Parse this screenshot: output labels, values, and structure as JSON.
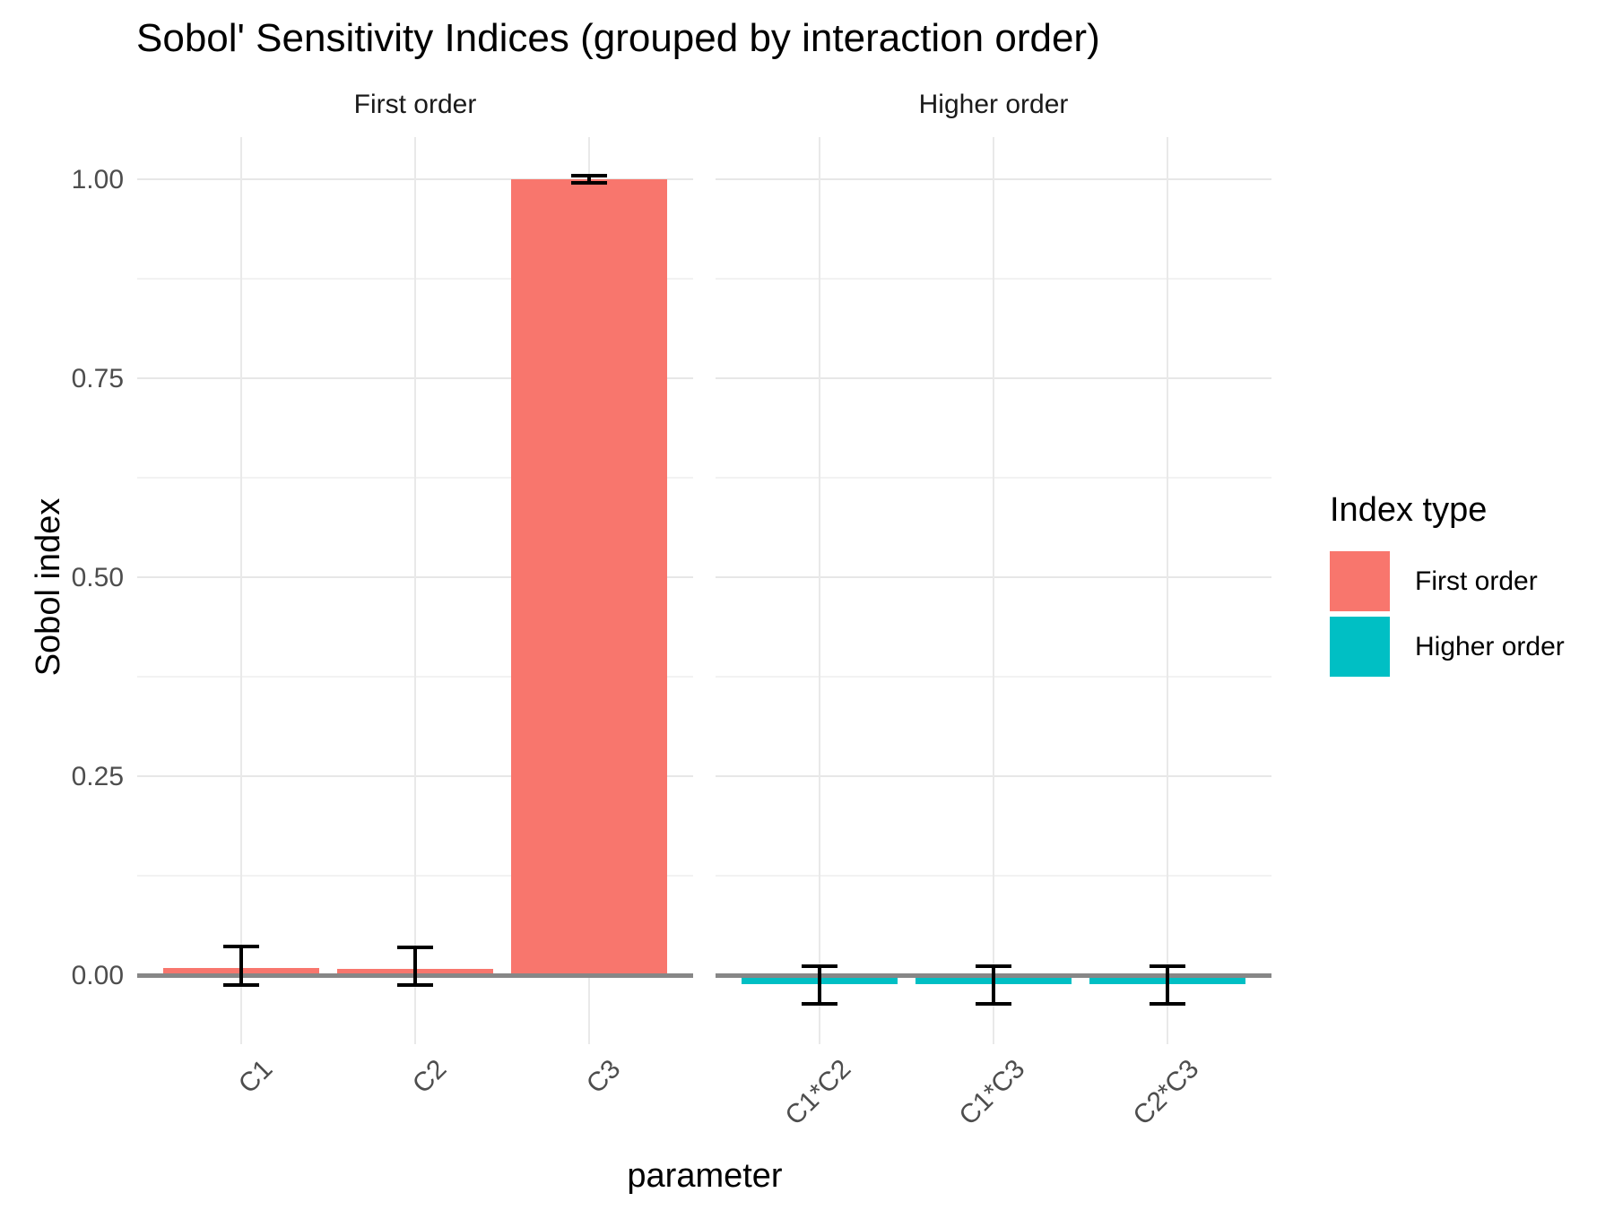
{
  "title": "Sobol' Sensitivity Indices (grouped by interaction order)",
  "chart_data": {
    "type": "bar",
    "title": "Sobol' Sensitivity Indices (grouped by interaction order)",
    "xlabel": "parameter",
    "ylabel": "Sobol index",
    "ylim": [
      -0.089,
      1.055
    ],
    "grid": true,
    "y_ticks": [
      {
        "value": 0.0,
        "label": "0.00"
      },
      {
        "value": 0.25,
        "label": "0.25"
      },
      {
        "value": 0.5,
        "label": "0.50"
      },
      {
        "value": 0.75,
        "label": "0.75"
      },
      {
        "value": 1.0,
        "label": "1.00"
      }
    ],
    "y_minor_ticks": [
      0.125,
      0.375,
      0.625,
      0.875
    ],
    "zero_line": 0,
    "facets": [
      {
        "label": "First order",
        "series": "First order",
        "color": "#F8766D",
        "categories": [
          "C1",
          "C2",
          "C3"
        ],
        "values": [
          0.009,
          0.008,
          1.0
        ],
        "error_low": [
          -0.012,
          -0.012,
          0.996
        ],
        "error_high": [
          0.036,
          0.035,
          1.004
        ]
      },
      {
        "label": "Higher order",
        "series": "Higher order",
        "color": "#00BFC4",
        "categories": [
          "C1*C2",
          "C1*C3",
          "C2*C3"
        ],
        "values": [
          -0.011,
          -0.011,
          -0.011
        ],
        "error_low": [
          -0.036,
          -0.036,
          -0.036
        ],
        "error_high": [
          0.011,
          0.011,
          0.011
        ]
      }
    ],
    "legend": {
      "title": "Index type",
      "position": "right",
      "items": [
        {
          "label": "First order",
          "color": "#F8766D"
        },
        {
          "label": "Higher order",
          "color": "#00BFC4"
        }
      ]
    }
  },
  "colors": {
    "first_order": "#F8766D",
    "higher_order": "#00BFC4",
    "grid_major": "#E7E7E7",
    "grid_minor": "#F2F2F2",
    "zero_line": "#878787",
    "tick_text": "#4D4D4D",
    "strip_text": "#1A1A1A",
    "title_text": "#000000"
  }
}
